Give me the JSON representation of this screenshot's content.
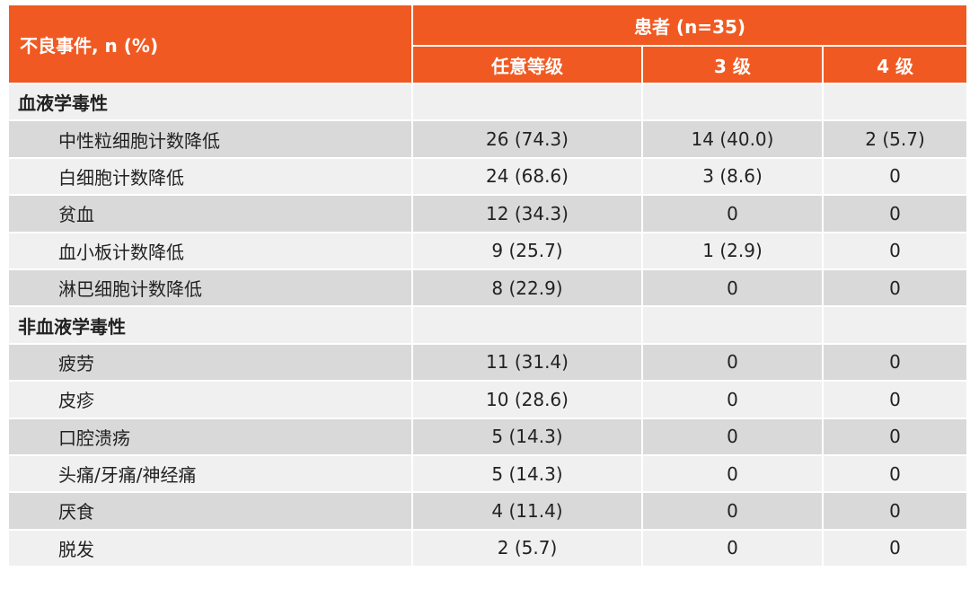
{
  "table": {
    "header": {
      "event_label": "不良事件, n (%)",
      "patients_label": "患者 (n=35)",
      "grades": [
        "任意等级",
        "3 级",
        "4 级"
      ]
    },
    "sections": [
      {
        "title": "血液学毒性",
        "rows": [
          [
            "中性粒细胞计数降低",
            "26 (74.3)",
            "14 (40.0)",
            "2 (5.7)"
          ],
          [
            "白细胞计数降低",
            "24 (68.6)",
            "3 (8.6)",
            "0"
          ],
          [
            "贫血",
            "12 (34.3)",
            "0",
            "0"
          ],
          [
            "血小板计数降低",
            "9 (25.7)",
            "1 (2.9)",
            "0"
          ],
          [
            "淋巴细胞计数降低",
            "8 (22.9)",
            "0",
            "0"
          ]
        ]
      },
      {
        "title": "非血液学毒性",
        "rows": [
          [
            "疲劳",
            "11 (31.4)",
            "0",
            "0"
          ],
          [
            "皮疹",
            "10 (28.6)",
            "0",
            "0"
          ],
          [
            "口腔溃疡",
            "5 (14.3)",
            "0",
            "0"
          ],
          [
            "头痛/牙痛/神经痛",
            "5 (14.3)",
            "0",
            "0"
          ],
          [
            "厌食",
            "4 (11.4)",
            "0",
            "0"
          ],
          [
            "脱发",
            "2 (5.7)",
            "0",
            "0"
          ]
        ]
      }
    ]
  }
}
